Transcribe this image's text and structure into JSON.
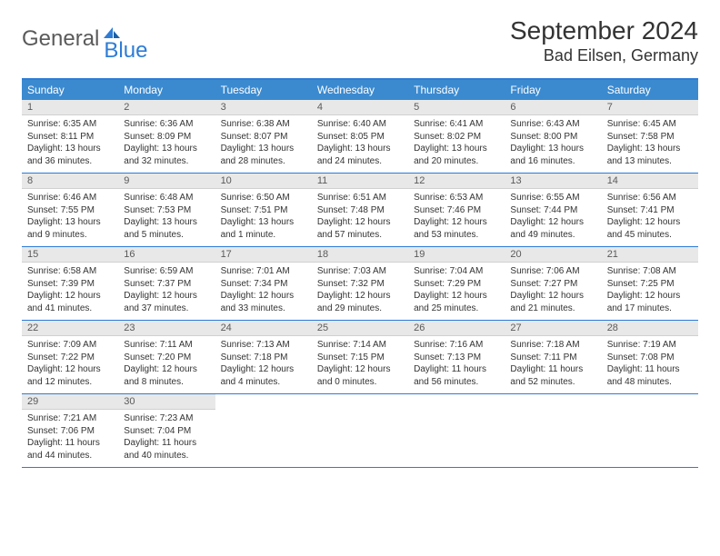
{
  "logo": {
    "text_general": "General",
    "text_blue": "Blue"
  },
  "title": "September 2024",
  "location": "Bad Eilsen, Germany",
  "colors": {
    "header_bg": "#3b8ad0",
    "header_text": "#ffffff",
    "border": "#2e7cd6",
    "day_num_bg": "#e8e8e8",
    "day_num_text": "#5a5a5a",
    "body_text": "#333333",
    "logo_gray": "#5a5a5a",
    "logo_blue": "#2e7cd6"
  },
  "weekdays": [
    "Sunday",
    "Monday",
    "Tuesday",
    "Wednesday",
    "Thursday",
    "Friday",
    "Saturday"
  ],
  "days": [
    {
      "num": "1",
      "sunrise": "6:35 AM",
      "sunset": "8:11 PM",
      "daylight_h": "13",
      "daylight_m": "36"
    },
    {
      "num": "2",
      "sunrise": "6:36 AM",
      "sunset": "8:09 PM",
      "daylight_h": "13",
      "daylight_m": "32"
    },
    {
      "num": "3",
      "sunrise": "6:38 AM",
      "sunset": "8:07 PM",
      "daylight_h": "13",
      "daylight_m": "28"
    },
    {
      "num": "4",
      "sunrise": "6:40 AM",
      "sunset": "8:05 PM",
      "daylight_h": "13",
      "daylight_m": "24"
    },
    {
      "num": "5",
      "sunrise": "6:41 AM",
      "sunset": "8:02 PM",
      "daylight_h": "13",
      "daylight_m": "20"
    },
    {
      "num": "6",
      "sunrise": "6:43 AM",
      "sunset": "8:00 PM",
      "daylight_h": "13",
      "daylight_m": "16"
    },
    {
      "num": "7",
      "sunrise": "6:45 AM",
      "sunset": "7:58 PM",
      "daylight_h": "13",
      "daylight_m": "13"
    },
    {
      "num": "8",
      "sunrise": "6:46 AM",
      "sunset": "7:55 PM",
      "daylight_h": "13",
      "daylight_m": "9"
    },
    {
      "num": "9",
      "sunrise": "6:48 AM",
      "sunset": "7:53 PM",
      "daylight_h": "13",
      "daylight_m": "5"
    },
    {
      "num": "10",
      "sunrise": "6:50 AM",
      "sunset": "7:51 PM",
      "daylight_h": "13",
      "daylight_m": "1"
    },
    {
      "num": "11",
      "sunrise": "6:51 AM",
      "sunset": "7:48 PM",
      "daylight_h": "12",
      "daylight_m": "57"
    },
    {
      "num": "12",
      "sunrise": "6:53 AM",
      "sunset": "7:46 PM",
      "daylight_h": "12",
      "daylight_m": "53"
    },
    {
      "num": "13",
      "sunrise": "6:55 AM",
      "sunset": "7:44 PM",
      "daylight_h": "12",
      "daylight_m": "49"
    },
    {
      "num": "14",
      "sunrise": "6:56 AM",
      "sunset": "7:41 PM",
      "daylight_h": "12",
      "daylight_m": "45"
    },
    {
      "num": "15",
      "sunrise": "6:58 AM",
      "sunset": "7:39 PM",
      "daylight_h": "12",
      "daylight_m": "41"
    },
    {
      "num": "16",
      "sunrise": "6:59 AM",
      "sunset": "7:37 PM",
      "daylight_h": "12",
      "daylight_m": "37"
    },
    {
      "num": "17",
      "sunrise": "7:01 AM",
      "sunset": "7:34 PM",
      "daylight_h": "12",
      "daylight_m": "33"
    },
    {
      "num": "18",
      "sunrise": "7:03 AM",
      "sunset": "7:32 PM",
      "daylight_h": "12",
      "daylight_m": "29"
    },
    {
      "num": "19",
      "sunrise": "7:04 AM",
      "sunset": "7:29 PM",
      "daylight_h": "12",
      "daylight_m": "25"
    },
    {
      "num": "20",
      "sunrise": "7:06 AM",
      "sunset": "7:27 PM",
      "daylight_h": "12",
      "daylight_m": "21"
    },
    {
      "num": "21",
      "sunrise": "7:08 AM",
      "sunset": "7:25 PM",
      "daylight_h": "12",
      "daylight_m": "17"
    },
    {
      "num": "22",
      "sunrise": "7:09 AM",
      "sunset": "7:22 PM",
      "daylight_h": "12",
      "daylight_m": "12"
    },
    {
      "num": "23",
      "sunrise": "7:11 AM",
      "sunset": "7:20 PM",
      "daylight_h": "12",
      "daylight_m": "8"
    },
    {
      "num": "24",
      "sunrise": "7:13 AM",
      "sunset": "7:18 PM",
      "daylight_h": "12",
      "daylight_m": "4"
    },
    {
      "num": "25",
      "sunrise": "7:14 AM",
      "sunset": "7:15 PM",
      "daylight_h": "12",
      "daylight_m": "0"
    },
    {
      "num": "26",
      "sunrise": "7:16 AM",
      "sunset": "7:13 PM",
      "daylight_h": "11",
      "daylight_m": "56"
    },
    {
      "num": "27",
      "sunrise": "7:18 AM",
      "sunset": "7:11 PM",
      "daylight_h": "11",
      "daylight_m": "52"
    },
    {
      "num": "28",
      "sunrise": "7:19 AM",
      "sunset": "7:08 PM",
      "daylight_h": "11",
      "daylight_m": "48"
    },
    {
      "num": "29",
      "sunrise": "7:21 AM",
      "sunset": "7:06 PM",
      "daylight_h": "11",
      "daylight_m": "44"
    },
    {
      "num": "30",
      "sunrise": "7:23 AM",
      "sunset": "7:04 PM",
      "daylight_h": "11",
      "daylight_m": "40"
    }
  ],
  "labels": {
    "sunrise": "Sunrise: ",
    "sunset": "Sunset: ",
    "daylight_pre": "Daylight: ",
    "hours": " hours",
    "and": "and ",
    "minute": " minute.",
    "minutes": " minutes."
  }
}
